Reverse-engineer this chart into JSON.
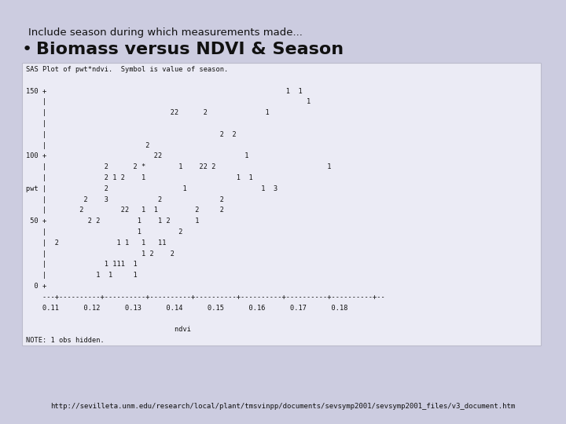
{
  "background_color": "#cccce0",
  "slide_title_line1": "Include season during which measurements made...",
  "slide_title_line1_fontsize": 9.5,
  "bullet_char": "•",
  "bullet_text": "Biomass versus NDVI & Season",
  "bullet_fontsize": 16,
  "plot_box_color": "#ebebf5",
  "plot_box_border": "#bbbbcc",
  "url_text": "http://sevilleta.unm.edu/research/local/plant/tmsvinpp/documents/sevsymp2001/sevsymp2001_files/v3_document.htm",
  "url_fontsize": 6.5,
  "mono_fontsize": 6.2,
  "sas_lines": [
    "SAS Plot of pwt*ndvi.  Symbol is value of season.",
    "",
    "150 +                                                          1  1",
    "    |                                                               1",
    "    |                              22      2              1",
    "    |",
    "    |                                          2  2",
    "    |                        2",
    "100 +                          22                    1",
    "    |              2      2 *        1    22 2                           1",
    "    |              2 1 2    1                      1  1",
    "pwt |              2                  1                  1  3",
    "    |         2    3            2              2",
    "    |        2         22   1  1         2     2",
    " 50 +          2 2         1    1 2      1",
    "    |                      1         2",
    "    |  2              1 1   1   11",
    "    |                       1 2    2",
    "    |              1 111  1",
    "    |            1  1     1",
    "  0 +",
    "    ---+----------+----------+----------+----------+----------+----------+----------+--",
    "    0.11      0.12      0.13      0.14      0.15      0.16      0.17      0.18",
    "",
    "                                    ndvi",
    "NOTE: 1 obs hidden."
  ]
}
